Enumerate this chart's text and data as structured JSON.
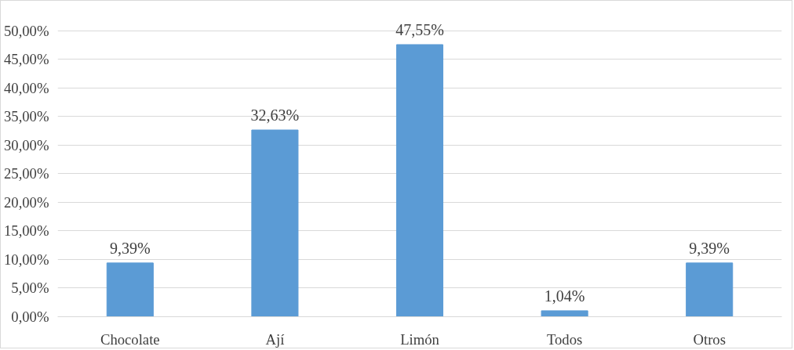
{
  "chart_data": {
    "type": "bar",
    "categories": [
      "Chocolate",
      "Ají",
      "Limón",
      "Todos",
      "Otros"
    ],
    "values": [
      9.39,
      32.63,
      47.55,
      1.04,
      9.39
    ],
    "value_labels": [
      "9,39%",
      "32,63%",
      "47,55%",
      "1,04%",
      "9,39%"
    ],
    "color": "#5b9bd5",
    "ylim": [
      0,
      50
    ],
    "yticks": [
      {
        "value": 0,
        "label": "0,00%"
      },
      {
        "value": 5,
        "label": "5,00%"
      },
      {
        "value": 10,
        "label": "10,00%"
      },
      {
        "value": 15,
        "label": "15,00%"
      },
      {
        "value": 20,
        "label": "20,00%"
      },
      {
        "value": 25,
        "label": "25,00%"
      },
      {
        "value": 30,
        "label": "30,00%"
      },
      {
        "value": 35,
        "label": "35,00%"
      },
      {
        "value": 40,
        "label": "40,00%"
      },
      {
        "value": 45,
        "label": "45,00%"
      },
      {
        "value": 50,
        "label": "50,00%"
      }
    ],
    "grid": "y"
  }
}
